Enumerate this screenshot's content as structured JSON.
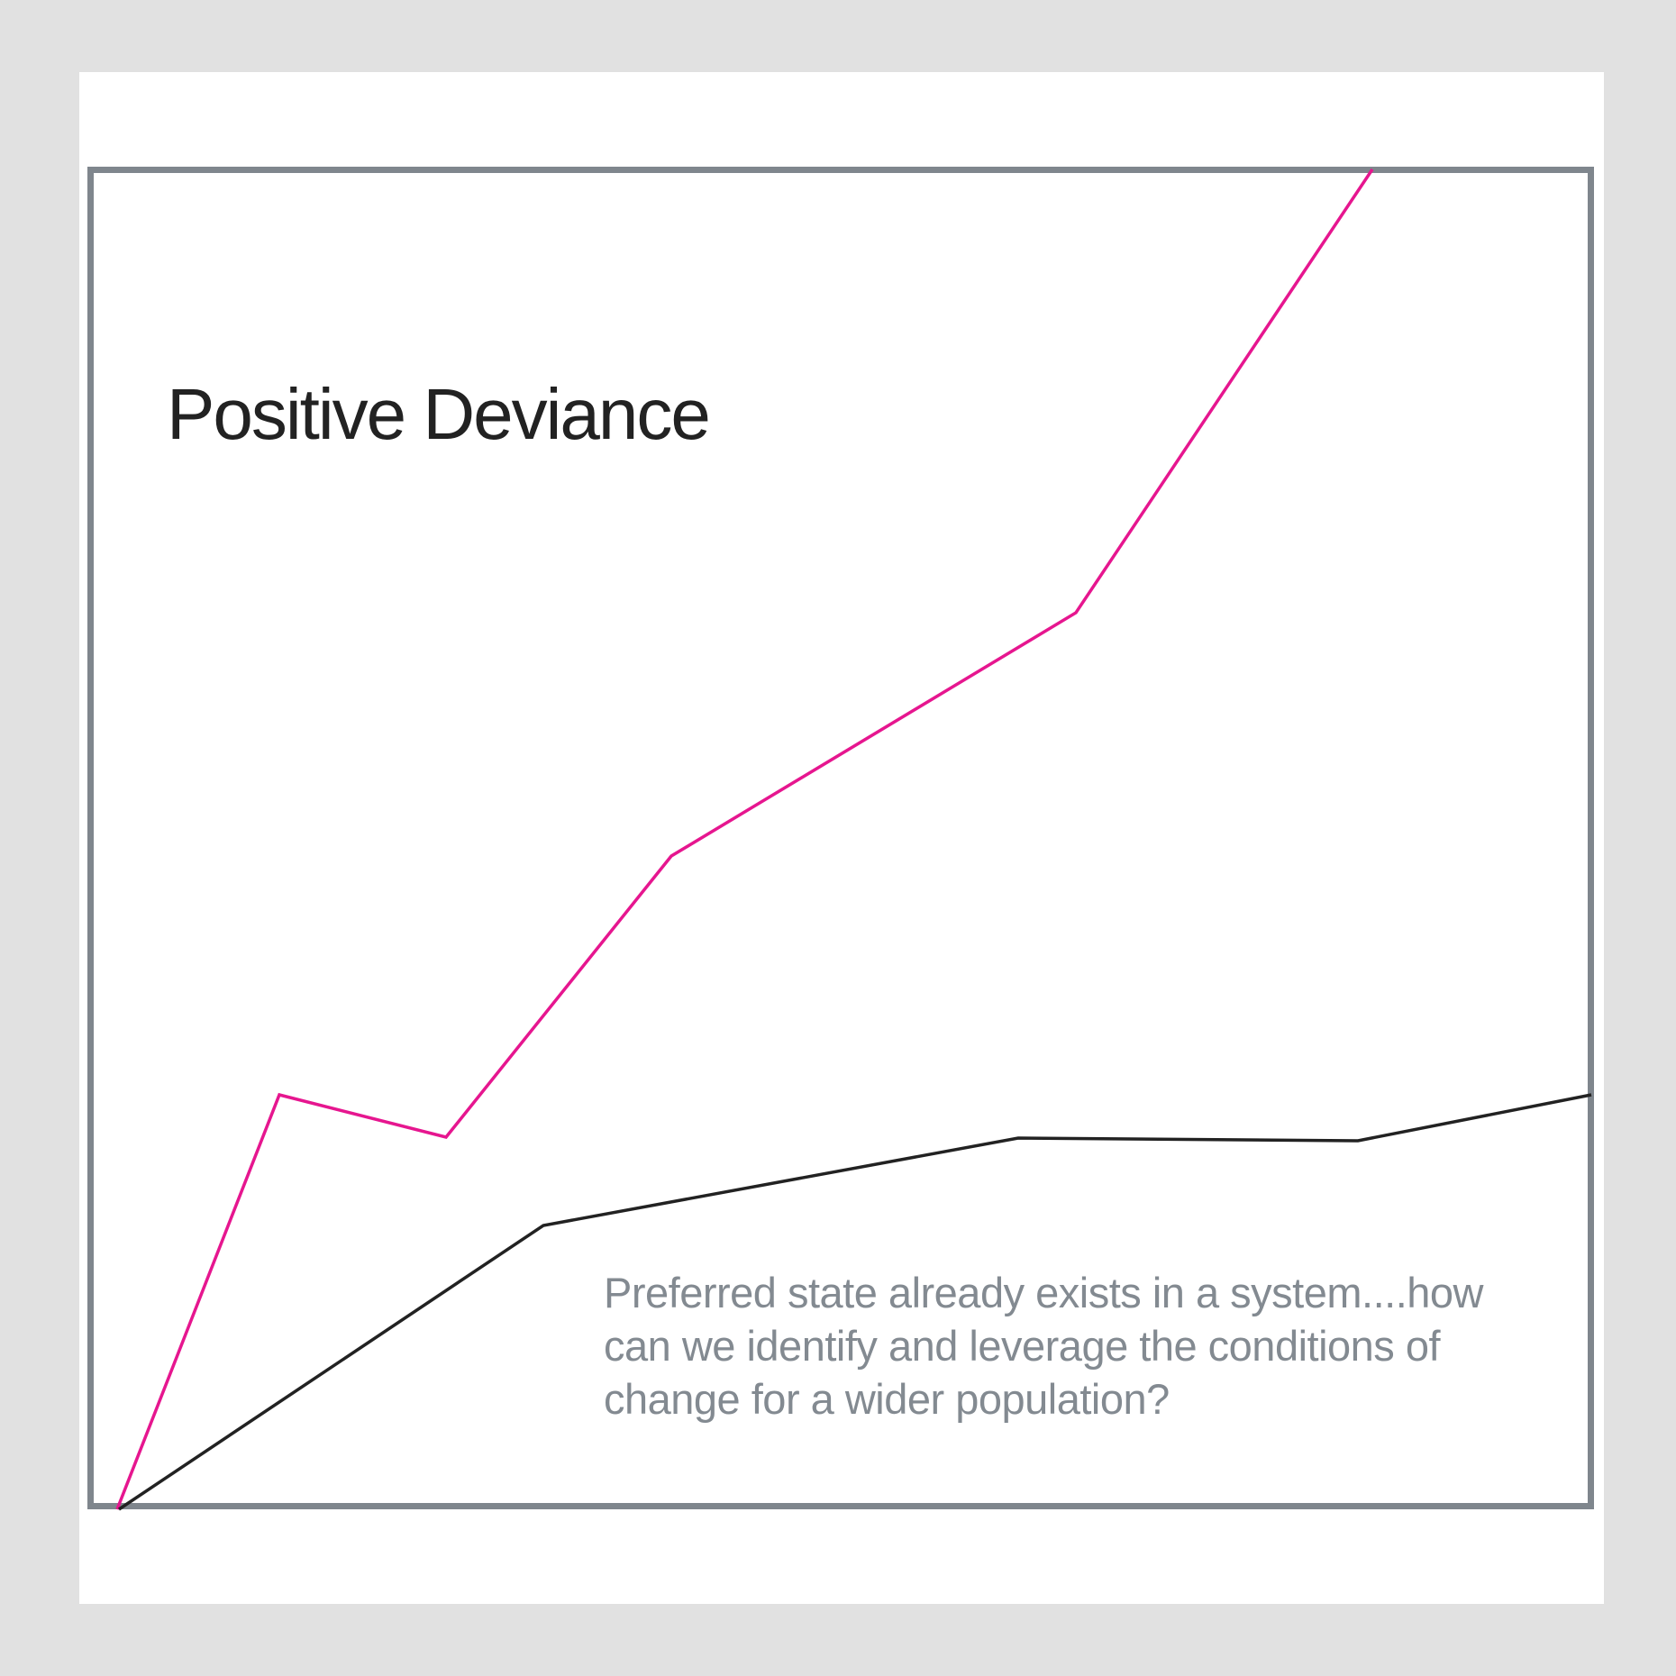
{
  "diagram": {
    "title": "Positive Deviance",
    "caption": "Preferred state already exists in a system....how can we identify and leverage the conditions of change for a wider population?",
    "colors": {
      "background": "#e1e1e1",
      "page": "#ffffff",
      "frame": "#7f868d",
      "deviant_line": "#e6168f",
      "baseline_line": "#222222",
      "title_text": "#222222",
      "caption_text": "#838a91"
    },
    "lines": [
      {
        "id": "deviant-line",
        "color_key": "deviant_line"
      },
      {
        "id": "baseline-line",
        "color_key": "baseline_line"
      }
    ]
  }
}
